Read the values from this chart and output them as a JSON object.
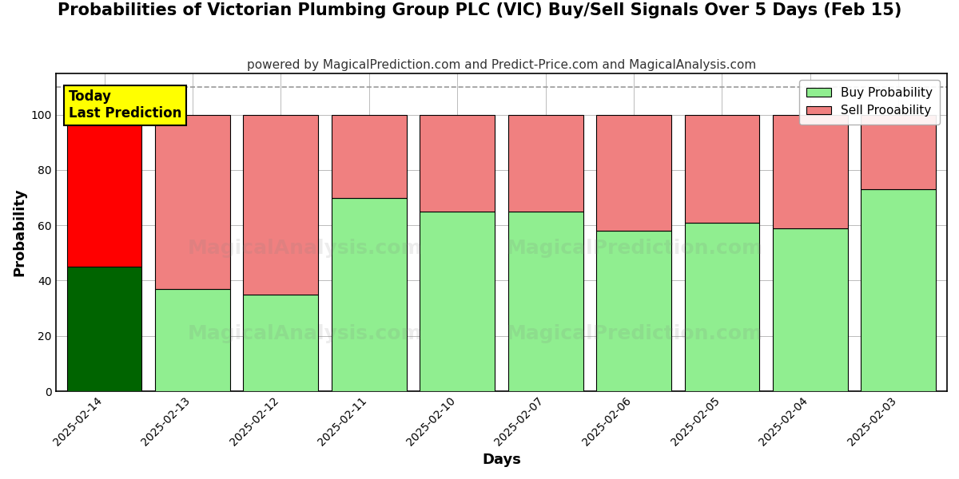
{
  "title": "Probabilities of Victorian Plumbing Group PLC (VIC) Buy/Sell Signals Over 5 Days (Feb 15)",
  "subtitle": "powered by MagicalPrediction.com and Predict-Price.com and MagicalAnalysis.com",
  "xlabel": "Days",
  "ylabel": "Probability",
  "categories": [
    "2025-02-14",
    "2025-02-13",
    "2025-02-12",
    "2025-02-11",
    "2025-02-10",
    "2025-02-07",
    "2025-02-06",
    "2025-02-05",
    "2025-02-04",
    "2025-02-03"
  ],
  "buy_values": [
    45,
    37,
    35,
    70,
    65,
    65,
    58,
    61,
    59,
    73
  ],
  "sell_values": [
    55,
    63,
    65,
    30,
    35,
    35,
    42,
    39,
    41,
    27
  ],
  "today_index": 0,
  "today_buy_color": "#006400",
  "today_sell_color": "#ff0000",
  "normal_buy_color": "#90ee90",
  "normal_sell_color": "#f08080",
  "bar_edge_color": "#000000",
  "bar_edge_width": 0.8,
  "today_annotation": "Today\nLast Prediction",
  "ylim": [
    0,
    115
  ],
  "yticks": [
    0,
    20,
    40,
    60,
    80,
    100
  ],
  "dashed_line_y": 110,
  "legend_buy_label": "Buy Probability",
  "legend_sell_label": "Sell Prooability",
  "title_fontsize": 15,
  "subtitle_fontsize": 11,
  "axis_label_fontsize": 13,
  "tick_fontsize": 10,
  "legend_fontsize": 11,
  "annotation_fontsize": 12,
  "figsize": [
    12,
    6
  ],
  "dpi": 100,
  "bg_color": "#ffffff",
  "grid_color": "#aaaaaa",
  "grid_alpha": 0.8,
  "bar_width": 0.85,
  "watermark1": "MagicalAnalysis.com",
  "watermark2": "MagicalPrediction.com"
}
